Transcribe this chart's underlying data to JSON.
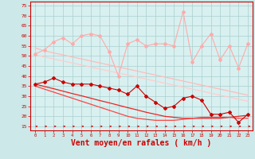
{
  "bg_color": "#cce8e8",
  "plot_bg_color": "#d8f0f0",
  "grid_color": "#aacece",
  "xlabel": "Vent moyen/en rafales ( km/h )",
  "xlabel_color": "#cc0000",
  "xlabel_fontsize": 7,
  "xtick_color": "#cc0000",
  "ytick_color": "#cc0000",
  "ytick_labels": [
    15,
    20,
    25,
    30,
    35,
    40,
    45,
    50,
    55,
    60,
    65,
    70,
    75
  ],
  "xlim": [
    -0.5,
    23.5
  ],
  "ylim": [
    13,
    77
  ],
  "x": [
    0,
    1,
    2,
    3,
    4,
    5,
    6,
    7,
    8,
    9,
    10,
    11,
    12,
    13,
    14,
    15,
    16,
    17,
    18,
    19,
    20,
    21,
    22,
    23
  ],
  "line1_y": [
    51,
    53,
    57,
    59,
    56,
    60,
    61,
    60,
    52,
    40,
    56,
    58,
    55,
    56,
    56,
    55,
    72,
    47,
    55,
    61,
    48,
    55,
    44,
    56
  ],
  "line1_color": "#ffaaaa",
  "line1_lw": 0.8,
  "line1_marker": "D",
  "line1_ms": 2.0,
  "line2_y": [
    54.0,
    52.5,
    51.5,
    50.5,
    49.5,
    48.5,
    47.5,
    46.5,
    45.5,
    44.5,
    43.5,
    42.5,
    41.5,
    40.5,
    39.5,
    38.5,
    37.5,
    36.5,
    35.5,
    34.5,
    33.5,
    32.5,
    31.5,
    30.5
  ],
  "line2_color": "#ffbbbb",
  "line2_lw": 0.9,
  "line3_y": [
    50.5,
    49.5,
    48.5,
    47.5,
    46.5,
    45.5,
    44.5,
    43.5,
    42.5,
    41.5,
    40.5,
    39.5,
    38.5,
    37.5,
    36.5,
    35.5,
    34.5,
    33.5,
    32.5,
    31.5,
    30.5,
    29.5,
    28.5,
    27.5
  ],
  "line3_color": "#ffcccc",
  "line3_lw": 0.9,
  "line4_y": [
    36,
    37,
    39,
    37,
    36,
    36,
    36,
    35,
    34,
    33,
    31,
    35,
    30,
    27,
    24,
    25,
    29,
    30,
    28,
    21,
    21,
    22,
    17,
    21
  ],
  "line4_color": "#cc0000",
  "line4_lw": 0.8,
  "line4_marker": "D",
  "line4_ms": 2.0,
  "line5_y": [
    36.0,
    34.8,
    33.7,
    32.5,
    31.3,
    30.2,
    29.0,
    27.8,
    26.7,
    25.5,
    24.3,
    23.2,
    22.0,
    21.0,
    20.0,
    19.5,
    19.0,
    19.0,
    19.0,
    19.0,
    19.0,
    19.5,
    20.0,
    20.5
  ],
  "line5_color": "#ee2222",
  "line5_lw": 0.9,
  "line6_y": [
    35.0,
    33.5,
    32.0,
    30.5,
    29.0,
    27.5,
    26.0,
    24.5,
    23.0,
    21.5,
    20.0,
    19.0,
    18.5,
    18.0,
    18.0,
    18.0,
    18.5,
    19.0,
    19.5,
    19.5,
    19.5,
    19.5,
    19.0,
    19.0
  ],
  "line6_color": "#ff4444",
  "line6_lw": 0.9,
  "wind_arrow_color": "#cc0000"
}
